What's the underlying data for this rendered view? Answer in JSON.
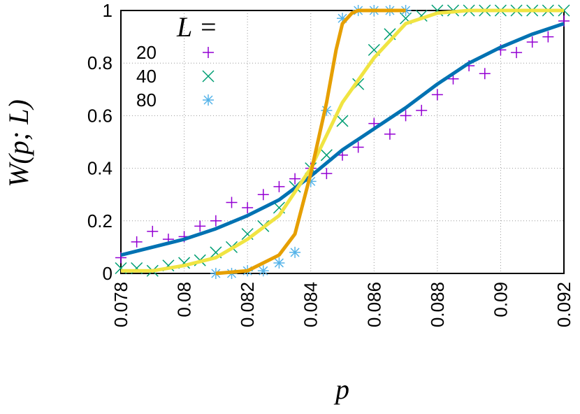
{
  "chart_data": {
    "type": "scatter",
    "xlabel": "p",
    "ylabel": "W(p; L)",
    "legend_title": "L =",
    "legend_loc": "upper left",
    "grid": true,
    "xlim": [
      0.078,
      0.092
    ],
    "xticks": [
      0.078,
      0.08,
      0.082,
      0.084,
      0.086,
      0.088,
      0.09,
      0.092
    ],
    "ylim": [
      0,
      1
    ],
    "yticks": [
      0,
      0.2,
      0.4,
      0.6,
      0.8,
      1
    ],
    "series": [
      {
        "name": "20",
        "color": "#9400d3",
        "marker": "plus",
        "x": [
          0.078,
          0.0785,
          0.079,
          0.0795,
          0.08,
          0.0805,
          0.081,
          0.0815,
          0.082,
          0.0825,
          0.083,
          0.0835,
          0.084,
          0.0845,
          0.085,
          0.0855,
          0.086,
          0.0865,
          0.087,
          0.0875,
          0.088,
          0.0885,
          0.089,
          0.0895,
          0.09,
          0.0905,
          0.091,
          0.0915,
          0.092
        ],
        "values": [
          0.06,
          0.12,
          0.16,
          0.13,
          0.14,
          0.18,
          0.2,
          0.27,
          0.25,
          0.3,
          0.33,
          0.36,
          0.4,
          0.38,
          0.45,
          0.48,
          0.57,
          0.53,
          0.6,
          0.62,
          0.68,
          0.74,
          0.79,
          0.76,
          0.85,
          0.84,
          0.88,
          0.9,
          0.96
        ]
      },
      {
        "name": "40",
        "color": "#009e73",
        "marker": "cross",
        "x": [
          0.078,
          0.0785,
          0.079,
          0.0795,
          0.08,
          0.0805,
          0.081,
          0.0815,
          0.082,
          0.0825,
          0.083,
          0.0835,
          0.084,
          0.0845,
          0.085,
          0.0855,
          0.086,
          0.0865,
          0.087,
          0.0875,
          0.088,
          0.0885,
          0.089,
          0.0895,
          0.09,
          0.0905,
          0.091,
          0.0915,
          0.092
        ],
        "values": [
          0.02,
          0.02,
          0.01,
          0.03,
          0.04,
          0.05,
          0.08,
          0.1,
          0.15,
          0.18,
          0.25,
          0.33,
          0.4,
          0.45,
          0.58,
          0.72,
          0.85,
          0.91,
          0.97,
          0.98,
          1,
          1,
          1,
          1,
          1,
          1,
          1,
          1,
          1
        ]
      },
      {
        "name": "80",
        "color": "#56b4e9",
        "marker": "star",
        "x": [
          0.081,
          0.0815,
          0.082,
          0.0825,
          0.083,
          0.0835,
          0.084,
          0.0845,
          0.085,
          0.0855,
          0.086,
          0.0865,
          0.087
        ],
        "values": [
          0,
          0,
          0.01,
          0.01,
          0.04,
          0.08,
          0.35,
          0.62,
          0.97,
          1,
          1,
          1,
          1
        ]
      }
    ],
    "fits": [
      {
        "color": "#0072b2",
        "x": [
          0.078,
          0.079,
          0.08,
          0.081,
          0.082,
          0.083,
          0.084,
          0.085,
          0.086,
          0.087,
          0.088,
          0.089,
          0.09,
          0.091,
          0.092
        ],
        "values": [
          0.07,
          0.1,
          0.13,
          0.17,
          0.22,
          0.28,
          0.37,
          0.47,
          0.55,
          0.63,
          0.72,
          0.8,
          0.86,
          0.91,
          0.95
        ]
      },
      {
        "color": "#f0e442",
        "x": [
          0.078,
          0.079,
          0.08,
          0.081,
          0.082,
          0.083,
          0.084,
          0.085,
          0.086,
          0.087,
          0.088,
          0.089,
          0.09,
          0.091,
          0.092
        ],
        "values": [
          0.01,
          0.01,
          0.03,
          0.06,
          0.13,
          0.22,
          0.4,
          0.65,
          0.82,
          0.95,
          0.99,
          1,
          1,
          1,
          1
        ]
      },
      {
        "color": "#e69f00",
        "x": [
          0.081,
          0.082,
          0.0825,
          0.083,
          0.0835,
          0.084,
          0.0845,
          0.0848,
          0.085,
          0.0853,
          0.0855,
          0.087
        ],
        "values": [
          0,
          0.01,
          0.04,
          0.07,
          0.15,
          0.38,
          0.65,
          0.85,
          0.95,
          0.99,
          1,
          1
        ]
      }
    ]
  }
}
